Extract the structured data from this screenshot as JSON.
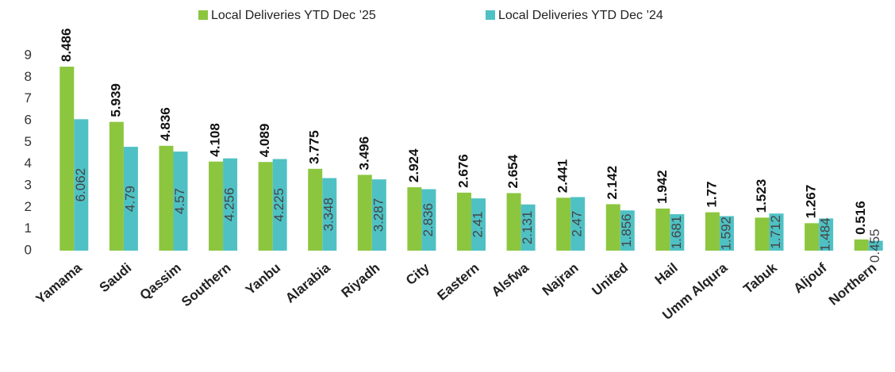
{
  "chart_data": {
    "type": "bar",
    "categories": [
      "Yamama",
      "Saudi",
      "Qassim",
      "Southern",
      "Yanbu",
      "Alarabia",
      "Riyadh",
      "City",
      "Eastern",
      "Alsfwa",
      "Najran",
      "United",
      "Hail",
      "Umm Alqura",
      "Tabuk",
      "Aljouf",
      "Northern"
    ],
    "series": [
      {
        "name": "Local Deliveries YTD Dec ’25",
        "color": "#8cc63f",
        "values": [
          8.486,
          5.939,
          4.836,
          4.108,
          4.089,
          3.775,
          3.496,
          2.924,
          2.676,
          2.654,
          2.441,
          2.142,
          1.942,
          1.77,
          1.523,
          1.267,
          0.516
        ]
      },
      {
        "name": "Local Deliveries YTD Dec ’24",
        "color": "#4fc1c4",
        "values": [
          6.062,
          4.79,
          4.57,
          4.256,
          4.225,
          3.348,
          3.287,
          2.836,
          2.41,
          2.131,
          2.47,
          1.856,
          1.681,
          1.592,
          1.712,
          1.484,
          0.455
        ]
      }
    ],
    "ylim": [
      0,
      9
    ],
    "yticks": [
      0,
      1,
      2,
      3,
      4,
      5,
      6,
      7,
      8,
      9
    ],
    "grid": false,
    "legend": "top"
  }
}
